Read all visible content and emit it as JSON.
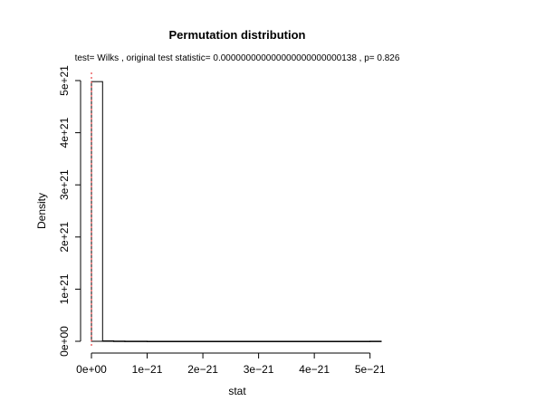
{
  "chart_data": {
    "type": "bar",
    "title": "Permutation distribution",
    "subtitle": "test= Wilks , original test statistic= 0.000000000000000000000000138 , p= 0.826",
    "xlabel": "stat",
    "ylabel": "Density",
    "xlim": [
      0,
      5.2e-21
    ],
    "ylim": [
      0,
      5e+21
    ],
    "x_ticks": [
      {
        "value": 0,
        "label": "0e+00"
      },
      {
        "value": 1e-21,
        "label": "1e−21"
      },
      {
        "value": 2e-21,
        "label": "2e−21"
      },
      {
        "value": 3e-21,
        "label": "3e−21"
      },
      {
        "value": 4e-21,
        "label": "4e−21"
      },
      {
        "value": 5e-21,
        "label": "5e−21"
      }
    ],
    "y_ticks": [
      {
        "value": 0,
        "label": "0e+00"
      },
      {
        "value": 1e+21,
        "label": "1e+21"
      },
      {
        "value": 2e+21,
        "label": "2e+21"
      },
      {
        "value": 3e+21,
        "label": "3e+21"
      },
      {
        "value": 4e+21,
        "label": "4e+21"
      },
      {
        "value": 5e+21,
        "label": "5e+21"
      }
    ],
    "bins": [
      {
        "x0": 0,
        "x1": 2e-22,
        "density": 4.98e+21
      },
      {
        "x0": 2e-22,
        "x1": 4e-22,
        "density": 8e+18
      },
      {
        "x0": 4e-22,
        "x1": 6e-22,
        "density": 4e+18
      },
      {
        "x0": 6e-22,
        "x1": 1e-21,
        "density": 2e+18
      },
      {
        "x0": 1e-21,
        "x1": 5e-21,
        "density": 5e+17
      },
      {
        "x0": 5e-21,
        "x1": 5.2e-21,
        "density": 2e+18
      }
    ],
    "reference_line": {
      "x": 1.38e-25,
      "color": "#e31a1c"
    }
  }
}
